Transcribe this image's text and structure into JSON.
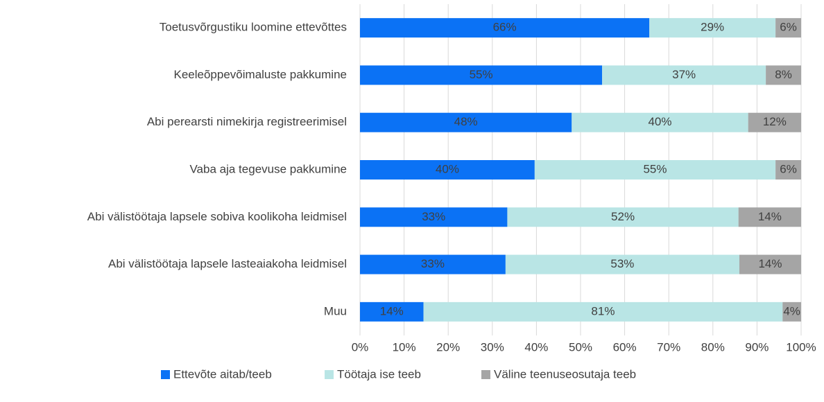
{
  "chart_data": {
    "type": "stacked_bar_horizontal",
    "categories": [
      "Toetusvõrgustiku loomine ettevõttes",
      "Keeleõppevõimaluste pakkumine",
      "Abi perearsti nimekirja registreerimisel",
      "Vaba aja tegevuse pakkumine",
      "Abi välistöötaja lapsele sobiva koolikoha leidmisel",
      "Abi välistöötaja lapsele lasteaiakoha leidmisel",
      "Muu"
    ],
    "series": [
      {
        "name": "Ettevõte aitab/teeb",
        "color": "#0b72f5",
        "values": [
          65.6,
          54.9,
          48,
          39.6,
          33.4,
          33,
          14.4
        ],
        "value_labels": [
          "66%",
          "55%",
          "48%",
          "40%",
          "33%",
          "33%",
          "14%"
        ]
      },
      {
        "name": "Töötaja ise teeb",
        "color": "#b9e5e5",
        "values": [
          28.6,
          37.1,
          40,
          54.6,
          52.4,
          53,
          81.4
        ],
        "value_labels": [
          "29%",
          "37%",
          "40%",
          "55%",
          "52%",
          "53%",
          "81%"
        ]
      },
      {
        "name": "Väline teenuseosutaja teeb",
        "color": "#a5a5a5",
        "values": [
          5.8,
          8,
          12,
          5.8,
          14.2,
          14,
          4.2
        ],
        "value_labels": [
          "6%",
          "8%",
          "12%",
          "6%",
          "14%",
          "14%",
          "4%"
        ]
      }
    ],
    "xlim": [
      0,
      100
    ],
    "xticks": [
      {
        "value": 0,
        "label": "0%"
      },
      {
        "value": 10,
        "label": "10%"
      },
      {
        "value": 20,
        "label": "20%"
      },
      {
        "value": 30,
        "label": "30%"
      },
      {
        "value": 40,
        "label": "40%"
      },
      {
        "value": 50,
        "label": "50%"
      },
      {
        "value": 60,
        "label": "60%"
      },
      {
        "value": 70,
        "label": "70%"
      },
      {
        "value": 80,
        "label": "80%"
      },
      {
        "value": 90,
        "label": "90%"
      },
      {
        "value": 100,
        "label": "100%"
      }
    ],
    "grid": true,
    "legend": "bottom"
  }
}
